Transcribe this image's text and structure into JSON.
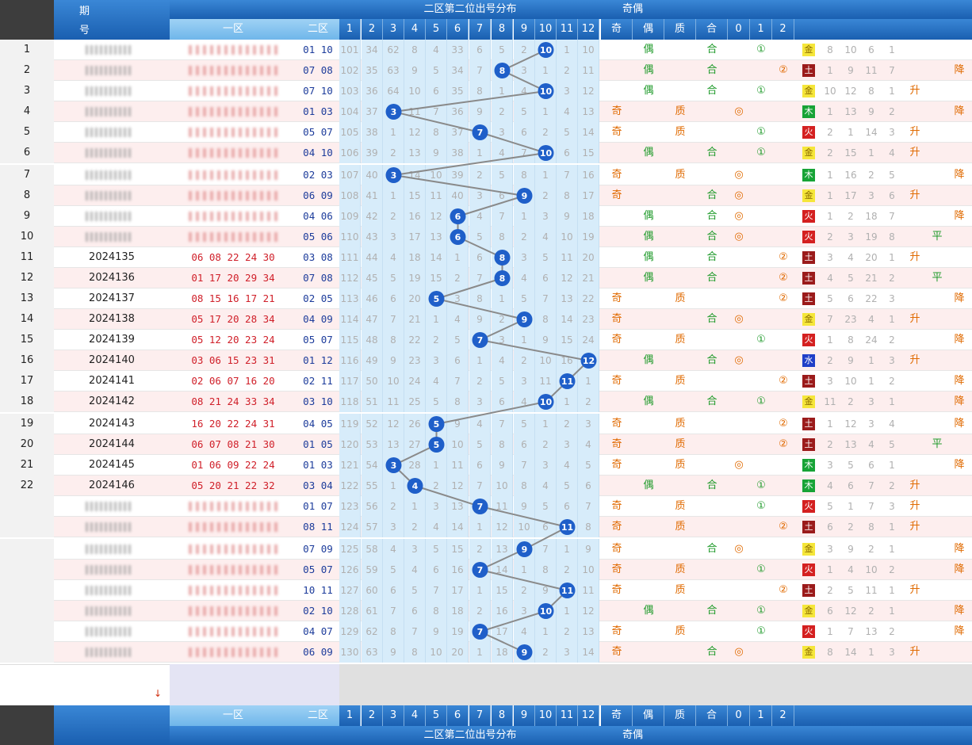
{
  "header": {
    "period_label_top": "期",
    "period_label_bottom": "号",
    "zone1_label": "一区",
    "zone2_label": "二区",
    "distribution_title": "二区第二位出号分布",
    "odd_even_title": "奇偶",
    "odd_label": "奇",
    "even_label": "偶",
    "prime_label": "质",
    "composite_label": "合",
    "mod_labels": [
      "0",
      "1",
      "2"
    ],
    "col_numbers": [
      "1",
      "2",
      "3",
      "4",
      "5",
      "6",
      "7",
      "8",
      "9",
      "10",
      "11",
      "12"
    ]
  },
  "colors": {
    "ball": "#1f5fc9",
    "header_blue": "#1a5fb0",
    "zone_blue": "#d7ecfa",
    "red_text": "#d0202a"
  },
  "chart_data": {
    "type": "table",
    "title": "二区第二位出号分布",
    "rows": [
      {
        "seq": "1",
        "issue": "",
        "zone1": "",
        "zone2": "01 10",
        "miss": [
          "101",
          "34",
          "62",
          "8",
          "4",
          "33",
          "6",
          "5",
          "2",
          "10",
          "1",
          "10"
        ],
        "value": 10,
        "oe": "偶",
        "pc": "合",
        "mod": "①",
        "mod_col": 1,
        "el": "金",
        "cnt": [
          "8",
          "10",
          "6",
          "1"
        ],
        "trend": ""
      },
      {
        "seq": "2",
        "issue": "",
        "zone1": "",
        "zone2": "07 08",
        "miss": [
          "102",
          "35",
          "63",
          "9",
          "5",
          "34",
          "7",
          "8",
          "3",
          "1",
          "2",
          "11"
        ],
        "value": 8,
        "oe": "偶",
        "pc": "合",
        "mod": "②",
        "mod_col": 2,
        "el": "土",
        "cnt": [
          "1",
          "9",
          "11",
          "7"
        ],
        "trend": "降"
      },
      {
        "seq": "3",
        "issue": "",
        "zone1": "",
        "zone2": "07 10",
        "miss": [
          "103",
          "36",
          "64",
          "10",
          "6",
          "35",
          "8",
          "1",
          "4",
          "10",
          "3",
          "12"
        ],
        "value": 10,
        "oe": "偶",
        "pc": "合",
        "mod": "①",
        "mod_col": 1,
        "el": "金",
        "cnt": [
          "10",
          "12",
          "8",
          "1"
        ],
        "trend": "升"
      },
      {
        "seq": "4",
        "issue": "",
        "zone1": "",
        "zone2": "01 03",
        "miss": [
          "104",
          "37",
          "3",
          "11",
          "7",
          "36",
          "9",
          "2",
          "5",
          "1",
          "4",
          "13"
        ],
        "value": 3,
        "oe": "奇",
        "pc": "质",
        "mod": "◎",
        "mod_col": 0,
        "el": "木",
        "cnt": [
          "1",
          "13",
          "9",
          "2"
        ],
        "trend": "降"
      },
      {
        "seq": "5",
        "issue": "",
        "zone1": "",
        "zone2": "05 07",
        "miss": [
          "105",
          "38",
          "1",
          "12",
          "8",
          "37",
          "7",
          "3",
          "6",
          "2",
          "5",
          "14"
        ],
        "value": 7,
        "oe": "奇",
        "pc": "质",
        "mod": "①",
        "mod_col": 1,
        "el": "火",
        "cnt": [
          "2",
          "1",
          "14",
          "3"
        ],
        "trend": "升"
      },
      {
        "seq": "6",
        "issue": "",
        "zone1": "",
        "zone2": "04 10",
        "miss": [
          "106",
          "39",
          "2",
          "13",
          "9",
          "38",
          "1",
          "4",
          "7",
          "10",
          "6",
          "15"
        ],
        "value": 10,
        "oe": "偶",
        "pc": "合",
        "mod": "①",
        "mod_col": 1,
        "el": "金",
        "cnt": [
          "2",
          "15",
          "1",
          "4"
        ],
        "trend": "升"
      },
      {
        "seq": "7",
        "issue": "",
        "zone1": "",
        "zone2": "02 03",
        "miss": [
          "107",
          "40",
          "3",
          "14",
          "10",
          "39",
          "2",
          "5",
          "8",
          "1",
          "7",
          "16"
        ],
        "value": 3,
        "oe": "奇",
        "pc": "质",
        "mod": "◎",
        "mod_col": 0,
        "el": "木",
        "cnt": [
          "1",
          "16",
          "2",
          "5"
        ],
        "trend": "降"
      },
      {
        "seq": "8",
        "issue": "",
        "zone1": "",
        "zone2": "06 09",
        "miss": [
          "108",
          "41",
          "1",
          "15",
          "11",
          "40",
          "3",
          "6",
          "9",
          "2",
          "8",
          "17"
        ],
        "value": 9,
        "oe": "奇",
        "pc": "合",
        "mod": "◎",
        "mod_col": 0,
        "el": "金",
        "cnt": [
          "1",
          "17",
          "3",
          "6"
        ],
        "trend": "升"
      },
      {
        "seq": "9",
        "issue": "",
        "zone1": "",
        "zone2": "04 06",
        "miss": [
          "109",
          "42",
          "2",
          "16",
          "12",
          "6",
          "4",
          "7",
          "1",
          "3",
          "9",
          "18"
        ],
        "value": 6,
        "oe": "偶",
        "pc": "合",
        "mod": "◎",
        "mod_col": 0,
        "el": "火",
        "cnt": [
          "1",
          "2",
          "18",
          "7"
        ],
        "trend": "降"
      },
      {
        "seq": "10",
        "issue": "",
        "zone1": "",
        "zone2": "05 06",
        "miss": [
          "110",
          "43",
          "3",
          "17",
          "13",
          "6",
          "5",
          "8",
          "2",
          "4",
          "10",
          "19"
        ],
        "value": 6,
        "oe": "偶",
        "pc": "合",
        "mod": "◎",
        "mod_col": 0,
        "el": "火",
        "cnt": [
          "2",
          "3",
          "19",
          "8"
        ],
        "trend": "平"
      },
      {
        "seq": "11",
        "issue": "2024135",
        "zone1": "06 08 22 24 30",
        "zone2": "03 08",
        "miss": [
          "111",
          "44",
          "4",
          "18",
          "14",
          "1",
          "6",
          "8",
          "3",
          "5",
          "11",
          "20"
        ],
        "value": 8,
        "oe": "偶",
        "pc": "合",
        "mod": "②",
        "mod_col": 2,
        "el": "土",
        "cnt": [
          "3",
          "4",
          "20",
          "1"
        ],
        "trend": "升"
      },
      {
        "seq": "12",
        "issue": "2024136",
        "zone1": "01 17 20 29 34",
        "zone2": "07 08",
        "miss": [
          "112",
          "45",
          "5",
          "19",
          "15",
          "2",
          "7",
          "8",
          "4",
          "6",
          "12",
          "21"
        ],
        "value": 8,
        "oe": "偶",
        "pc": "合",
        "mod": "②",
        "mod_col": 2,
        "el": "土",
        "cnt": [
          "4",
          "5",
          "21",
          "2"
        ],
        "trend": "平"
      },
      {
        "seq": "13",
        "issue": "2024137",
        "zone1": "08 15 16 17 21",
        "zone2": "02 05",
        "miss": [
          "113",
          "46",
          "6",
          "20",
          "5",
          "3",
          "8",
          "1",
          "5",
          "7",
          "13",
          "22"
        ],
        "value": 5,
        "oe": "奇",
        "pc": "质",
        "mod": "②",
        "mod_col": 2,
        "el": "土",
        "cnt": [
          "5",
          "6",
          "22",
          "3"
        ],
        "trend": "降"
      },
      {
        "seq": "14",
        "issue": "2024138",
        "zone1": "05 17 20 28 34",
        "zone2": "04 09",
        "miss": [
          "114",
          "47",
          "7",
          "21",
          "1",
          "4",
          "9",
          "2",
          "9",
          "8",
          "14",
          "23"
        ],
        "value": 9,
        "oe": "奇",
        "pc": "合",
        "mod": "◎",
        "mod_col": 0,
        "el": "金",
        "cnt": [
          "7",
          "23",
          "4",
          "1"
        ],
        "trend": "升"
      },
      {
        "seq": "15",
        "issue": "2024139",
        "zone1": "05 12 20 23 24",
        "zone2": "05 07",
        "miss": [
          "115",
          "48",
          "8",
          "22",
          "2",
          "5",
          "7",
          "3",
          "1",
          "9",
          "15",
          "24"
        ],
        "value": 7,
        "oe": "奇",
        "pc": "质",
        "mod": "①",
        "mod_col": 1,
        "el": "火",
        "cnt": [
          "1",
          "8",
          "24",
          "2"
        ],
        "trend": "降"
      },
      {
        "seq": "16",
        "issue": "2024140",
        "zone1": "03 06 15 23 31",
        "zone2": "01 12",
        "miss": [
          "116",
          "49",
          "9",
          "23",
          "3",
          "6",
          "1",
          "4",
          "2",
          "10",
          "16",
          "12"
        ],
        "value": 12,
        "oe": "偶",
        "pc": "合",
        "mod": "◎",
        "mod_col": 0,
        "el": "水",
        "cnt": [
          "2",
          "9",
          "1",
          "3"
        ],
        "trend": "升"
      },
      {
        "seq": "17",
        "issue": "2024141",
        "zone1": "02 06 07 16 20",
        "zone2": "02 11",
        "miss": [
          "117",
          "50",
          "10",
          "24",
          "4",
          "7",
          "2",
          "5",
          "3",
          "11",
          "11",
          "1"
        ],
        "value": 11,
        "oe": "奇",
        "pc": "质",
        "mod": "②",
        "mod_col": 2,
        "el": "土",
        "cnt": [
          "3",
          "10",
          "1",
          "2"
        ],
        "trend": "降"
      },
      {
        "seq": "18",
        "issue": "2024142",
        "zone1": "08 21 24 33 34",
        "zone2": "03 10",
        "miss": [
          "118",
          "51",
          "11",
          "25",
          "5",
          "8",
          "3",
          "6",
          "4",
          "10",
          "1",
          "2"
        ],
        "value": 10,
        "oe": "偶",
        "pc": "合",
        "mod": "①",
        "mod_col": 1,
        "el": "金",
        "cnt": [
          "11",
          "2",
          "3",
          "1"
        ],
        "trend": "降"
      },
      {
        "seq": "19",
        "issue": "2024143",
        "zone1": "16 20 22 24 31",
        "zone2": "04 05",
        "miss": [
          "119",
          "52",
          "12",
          "26",
          "5",
          "9",
          "4",
          "7",
          "5",
          "1",
          "2",
          "3"
        ],
        "value": 5,
        "oe": "奇",
        "pc": "质",
        "mod": "②",
        "mod_col": 2,
        "el": "土",
        "cnt": [
          "1",
          "12",
          "3",
          "4"
        ],
        "trend": "降"
      },
      {
        "seq": "20",
        "issue": "2024144",
        "zone1": "06 07 08 21 30",
        "zone2": "01 05",
        "miss": [
          "120",
          "53",
          "13",
          "27",
          "5",
          "10",
          "5",
          "8",
          "6",
          "2",
          "3",
          "4"
        ],
        "value": 5,
        "oe": "奇",
        "pc": "质",
        "mod": "②",
        "mod_col": 2,
        "el": "土",
        "cnt": [
          "2",
          "13",
          "4",
          "5"
        ],
        "trend": "平"
      },
      {
        "seq": "21",
        "issue": "2024145",
        "zone1": "01 06 09 22 24",
        "zone2": "01 03",
        "miss": [
          "121",
          "54",
          "3",
          "28",
          "1",
          "11",
          "6",
          "9",
          "7",
          "3",
          "4",
          "5"
        ],
        "value": 3,
        "oe": "奇",
        "pc": "质",
        "mod": "◎",
        "mod_col": 0,
        "el": "木",
        "cnt": [
          "3",
          "5",
          "6",
          "1"
        ],
        "trend": "降"
      },
      {
        "seq": "22",
        "issue": "2024146",
        "zone1": "05 20 21 22 32",
        "zone2": "03 04",
        "miss": [
          "122",
          "55",
          "1",
          "4",
          "2",
          "12",
          "7",
          "10",
          "8",
          "4",
          "5",
          "6"
        ],
        "value": 4,
        "oe": "偶",
        "pc": "合",
        "mod": "①",
        "mod_col": 1,
        "el": "木",
        "cnt": [
          "4",
          "6",
          "7",
          "2"
        ],
        "trend": "升"
      },
      {
        "seq": "",
        "issue": "",
        "zone1": "",
        "zone2": "01 07",
        "miss": [
          "123",
          "56",
          "2",
          "1",
          "3",
          "13",
          "7",
          "11",
          "9",
          "5",
          "6",
          "7"
        ],
        "value": 7,
        "oe": "奇",
        "pc": "质",
        "mod": "①",
        "mod_col": 1,
        "el": "火",
        "cnt": [
          "5",
          "1",
          "7",
          "3"
        ],
        "trend": "升"
      },
      {
        "seq": "",
        "issue": "",
        "zone1": "",
        "zone2": "08 11",
        "miss": [
          "124",
          "57",
          "3",
          "2",
          "4",
          "14",
          "1",
          "12",
          "10",
          "6",
          "11",
          "8"
        ],
        "value": 11,
        "oe": "奇",
        "pc": "质",
        "mod": "②",
        "mod_col": 2,
        "el": "土",
        "cnt": [
          "6",
          "2",
          "8",
          "1"
        ],
        "trend": "升"
      },
      {
        "seq": "",
        "issue": "",
        "zone1": "",
        "zone2": "07 09",
        "miss": [
          "125",
          "58",
          "4",
          "3",
          "5",
          "15",
          "2",
          "13",
          "9",
          "7",
          "1",
          "9"
        ],
        "value": 9,
        "oe": "奇",
        "pc": "合",
        "mod": "◎",
        "mod_col": 0,
        "el": "金",
        "cnt": [
          "3",
          "9",
          "2",
          "1"
        ],
        "trend": "降"
      },
      {
        "seq": "",
        "issue": "",
        "zone1": "",
        "zone2": "05 07",
        "miss": [
          "126",
          "59",
          "5",
          "4",
          "6",
          "16",
          "7",
          "14",
          "1",
          "8",
          "2",
          "10"
        ],
        "value": 7,
        "oe": "奇",
        "pc": "质",
        "mod": "①",
        "mod_col": 1,
        "el": "火",
        "cnt": [
          "1",
          "4",
          "10",
          "2"
        ],
        "trend": "降"
      },
      {
        "seq": "",
        "issue": "",
        "zone1": "",
        "zone2": "10 11",
        "miss": [
          "127",
          "60",
          "6",
          "5",
          "7",
          "17",
          "1",
          "15",
          "2",
          "9",
          "11",
          "11"
        ],
        "value": 11,
        "oe": "奇",
        "pc": "质",
        "mod": "②",
        "mod_col": 2,
        "el": "土",
        "cnt": [
          "2",
          "5",
          "11",
          "1"
        ],
        "trend": "升"
      },
      {
        "seq": "",
        "issue": "",
        "zone1": "",
        "zone2": "02 10",
        "miss": [
          "128",
          "61",
          "7",
          "6",
          "8",
          "18",
          "2",
          "16",
          "3",
          "10",
          "1",
          "12"
        ],
        "value": 10,
        "oe": "偶",
        "pc": "合",
        "mod": "①",
        "mod_col": 1,
        "el": "金",
        "cnt": [
          "6",
          "12",
          "2",
          "1"
        ],
        "trend": "降"
      },
      {
        "seq": "",
        "issue": "",
        "zone1": "",
        "zone2": "04 07",
        "miss": [
          "129",
          "62",
          "8",
          "7",
          "9",
          "19",
          "7",
          "17",
          "4",
          "1",
          "2",
          "13"
        ],
        "value": 7,
        "oe": "奇",
        "pc": "质",
        "mod": "①",
        "mod_col": 1,
        "el": "火",
        "cnt": [
          "1",
          "7",
          "13",
          "2"
        ],
        "trend": "降"
      },
      {
        "seq": "",
        "issue": "",
        "zone1": "",
        "zone2": "06 09",
        "miss": [
          "130",
          "63",
          "9",
          "8",
          "10",
          "20",
          "1",
          "18",
          "9",
          "2",
          "3",
          "14"
        ],
        "value": 9,
        "oe": "奇",
        "pc": "合",
        "mod": "◎",
        "mod_col": 0,
        "el": "金",
        "cnt": [
          "8",
          "14",
          "1",
          "3"
        ],
        "trend": "升"
      }
    ]
  }
}
